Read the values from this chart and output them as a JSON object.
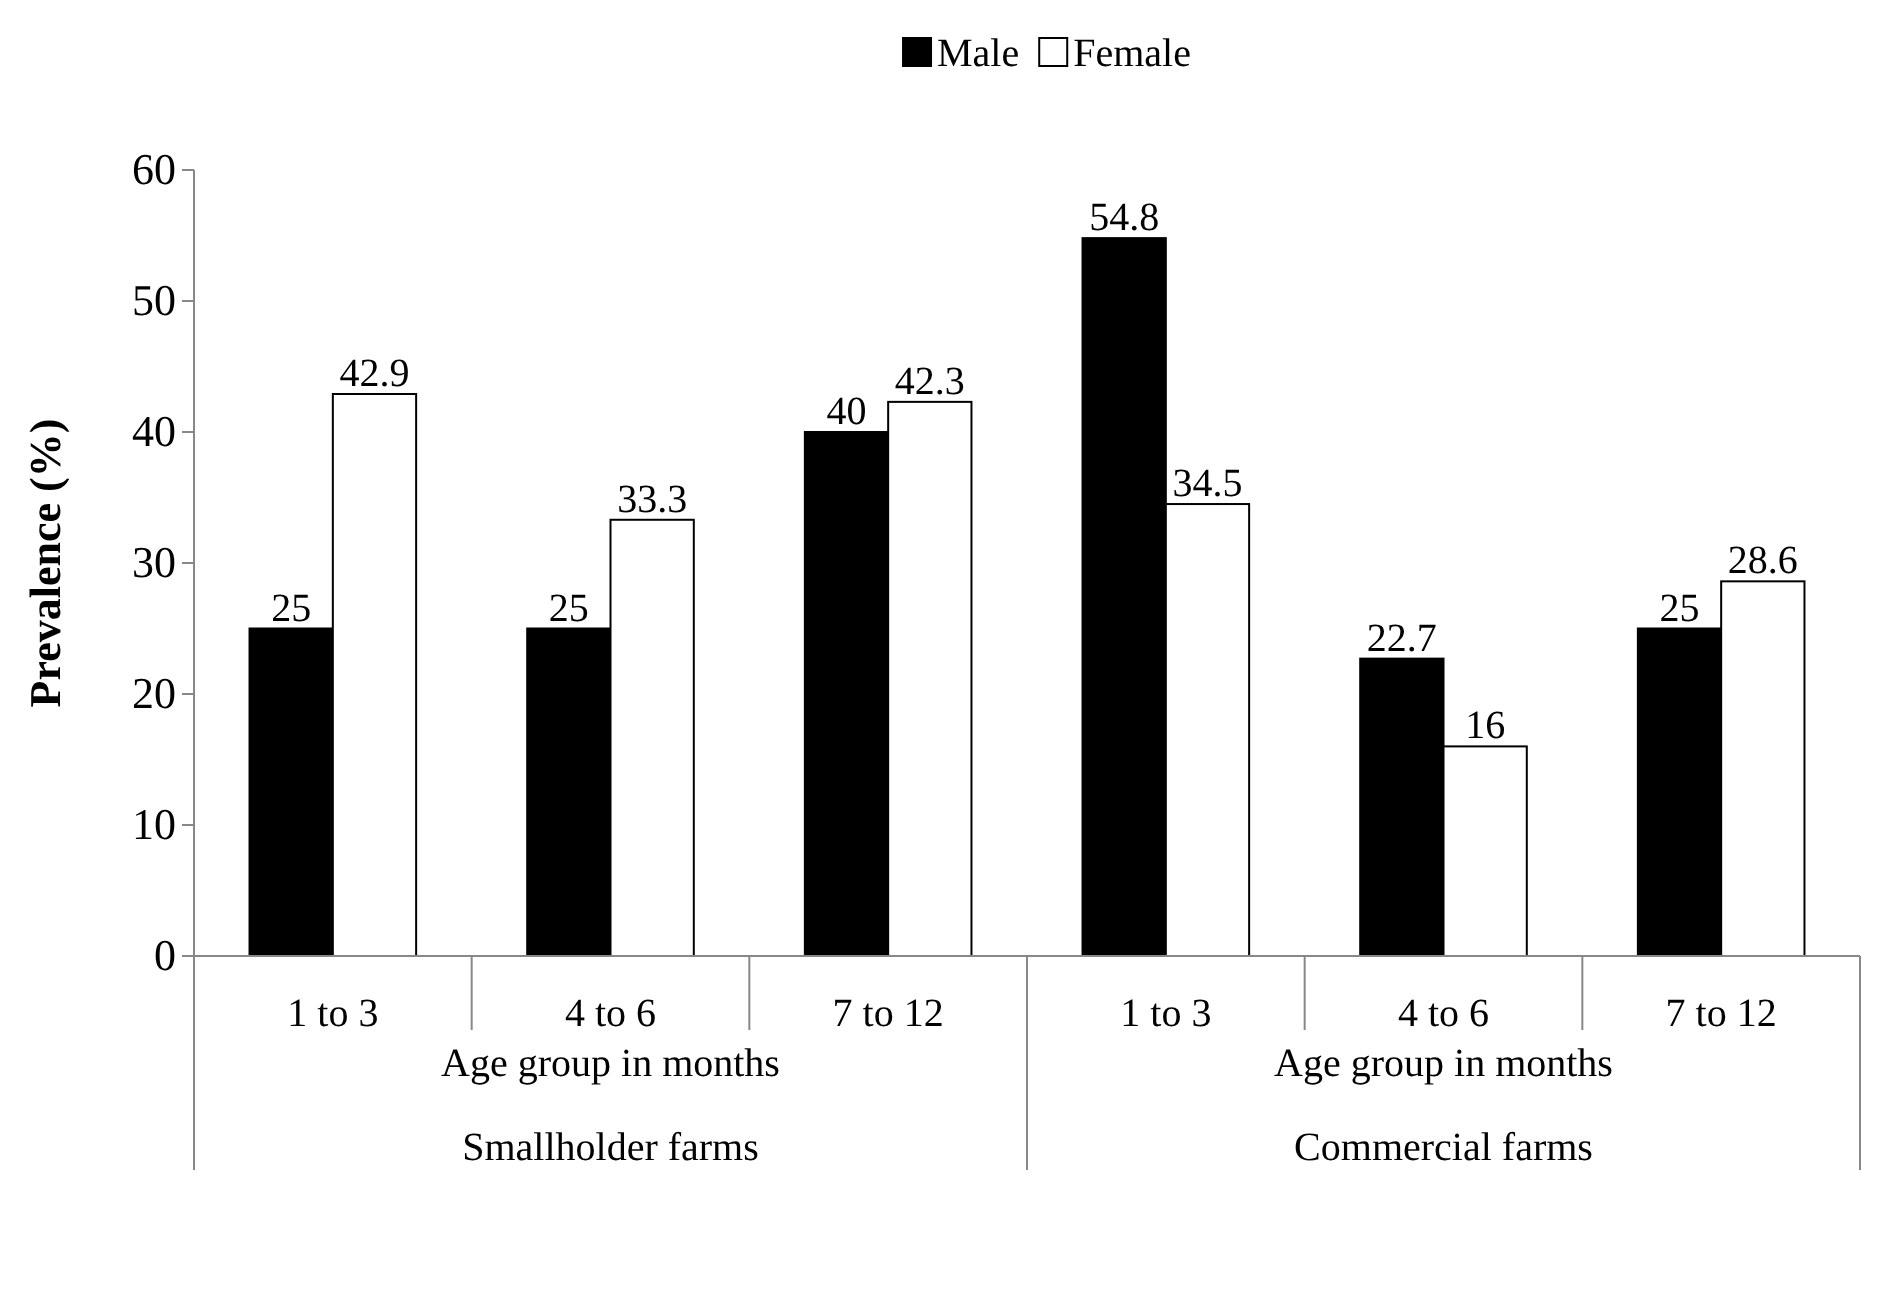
{
  "chart_data": {
    "type": "bar",
    "ylabel": "Prevalence (%)",
    "categories": [
      "1 to 3",
      "4 to 6",
      "7 to 12",
      "1 to 3",
      "4 to 6",
      "7 to 12"
    ],
    "series": [
      {
        "name": "Male",
        "color": "#000000",
        "values": [
          25,
          25,
          40,
          54.8,
          22.7,
          25
        ]
      },
      {
        "name": "Female",
        "color": "#ffffff",
        "values": [
          42.9,
          33.3,
          42.3,
          34.5,
          16,
          28.6
        ]
      }
    ],
    "ylim": [
      0,
      60
    ],
    "yticks": [
      0,
      10,
      20,
      30,
      40,
      50,
      60
    ],
    "grid": false,
    "legend": "top",
    "data_labels": true,
    "annotations": [
      "Age group in months",
      "Age group in months",
      "Smallholder farms",
      "Commercial farms"
    ]
  }
}
